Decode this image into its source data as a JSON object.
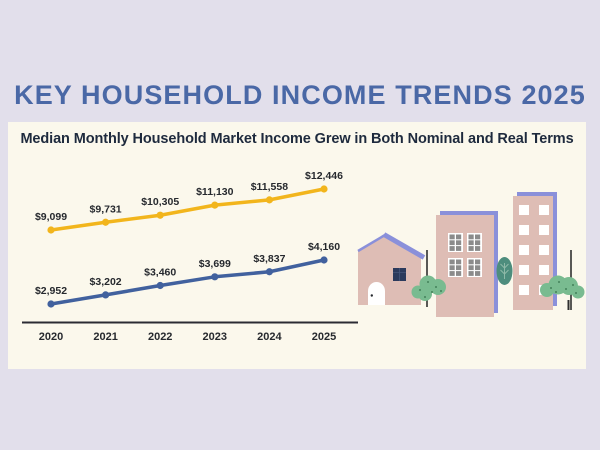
{
  "header": {
    "title": "KEY HOUSEHOLD INCOME TRENDS 2025"
  },
  "card": {
    "subtitle": "Median Monthly Household Market Income Grew in Both Nominal and Real Terms"
  },
  "chart_data": {
    "type": "line",
    "title": "Median Monthly Household Market Income Grew in Both Nominal and Real Terms",
    "x": [
      2020,
      2021,
      2022,
      2023,
      2024,
      2025
    ],
    "x_tick_labels": [
      "2020",
      "2021",
      "2022",
      "2023",
      "2024",
      "2025"
    ],
    "series": [
      {
        "name": "upper-income-line",
        "color": "#f2b51c",
        "values": [
          9099,
          9731,
          10305,
          11130,
          11558,
          12446
        ],
        "labels": [
          "$9,099",
          "$9,731",
          "$10,305",
          "$11,130",
          "$11,558",
          "$12,446"
        ]
      },
      {
        "name": "lower-income-line",
        "color": "#41619e",
        "values": [
          2952,
          3202,
          3460,
          3699,
          3837,
          4160
        ],
        "labels": [
          "$2,952",
          "$3,202",
          "$3,460",
          "$3,699",
          "$3,837",
          "$4,160"
        ]
      }
    ],
    "xlabel": "",
    "ylabel": "",
    "grid": false,
    "legend": "none"
  },
  "illustration": {
    "name": "houses-and-buildings",
    "colors": {
      "page_background": "#e2dfeb",
      "card_background": "#fbf8ec",
      "title_text": "#4a68a6",
      "subtitle_text": "#1e2a3d",
      "value_label_text": "#26292e",
      "axis": "#2b2b33",
      "building_pink": "#debdb5",
      "building_trim_periwinkle": "#8a90da",
      "house_window_navy": "#2b3a5c",
      "window_pane_gray": "#8b8b8b",
      "bush_green": "#79bb90",
      "bush_dot_green": "#44815a",
      "tree_teal": "#4d8d7d",
      "pole_dark": "#2f2f2f",
      "door_white": "#ffffff"
    }
  }
}
